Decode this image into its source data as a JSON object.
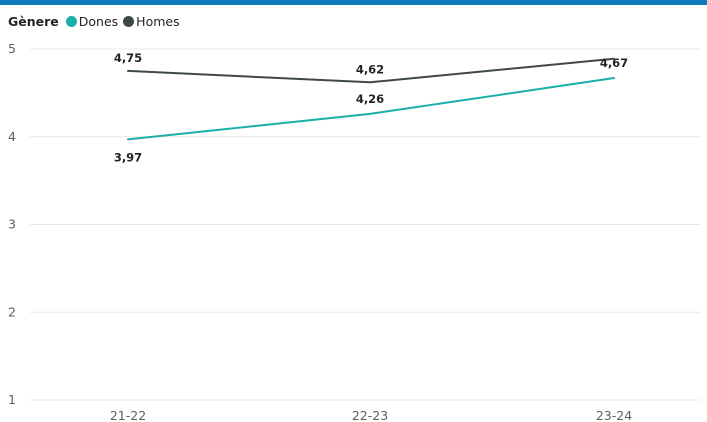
{
  "chart_data": {
    "type": "line",
    "legend_title": "Gènere",
    "legend_position": "top-left",
    "categories": [
      "21-22",
      "22-23",
      "23-24"
    ],
    "series": [
      {
        "name": "Dones",
        "color": "#1ab0a8",
        "values": [
          3.97,
          4.26,
          4.67
        ],
        "labels": [
          "3,97",
          "4,26",
          "4,67"
        ]
      },
      {
        "name": "Homes",
        "color": "#3f4848",
        "values": [
          4.75,
          4.62,
          4.89
        ],
        "labels": [
          "4,75",
          "4,62",
          ""
        ]
      }
    ],
    "ylim": [
      1,
      5
    ],
    "yticks": [
      1,
      2,
      3,
      4,
      5
    ],
    "ytick_labels": [
      "1",
      "2",
      "3",
      "4",
      "5"
    ],
    "grid": true
  }
}
